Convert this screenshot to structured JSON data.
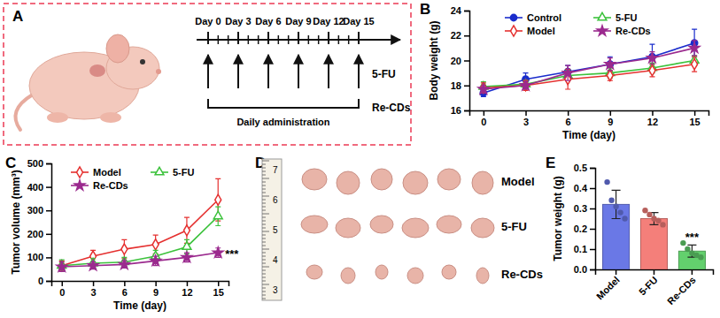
{
  "figure": {
    "panel_labels": [
      "A",
      "B",
      "C",
      "D",
      "E"
    ],
    "schematic": {
      "days": [
        0,
        3,
        6,
        9,
        12,
        15
      ],
      "day_labels": [
        "Day 0",
        "Day 3",
        "Day 6",
        "Day 9",
        "Day 12",
        "Day 15"
      ],
      "arrow_label": "5-FU",
      "bracket_label": "Re-CDs",
      "bracket_text": "Daily administration"
    },
    "photo": {
      "ruler": [
        7,
        6,
        5,
        4,
        3
      ],
      "rows": [
        "Model",
        "5-FU",
        "Re-CDs"
      ]
    }
  },
  "chart_data": [
    {
      "type": "line",
      "x_label": "Time (day)",
      "y_label": "Body weight (g)",
      "x": [
        0,
        3,
        6,
        9,
        12,
        15
      ],
      "xlim": [
        -1,
        16
      ],
      "xticks": [
        0,
        3,
        6,
        9,
        12,
        15
      ],
      "ylim": [
        16,
        24
      ],
      "yticks": [
        16,
        18,
        20,
        22,
        24
      ],
      "legend": "top",
      "series": [
        {
          "name": "Control",
          "color": "#1a2ccc",
          "marker": "circle",
          "values": [
            17.4,
            18.5,
            19.1,
            19.7,
            20.3,
            21.4
          ],
          "errors": [
            0.3,
            0.5,
            0.5,
            0.6,
            1.0,
            1.1
          ]
        },
        {
          "name": "5-FU",
          "color": "#3cc23c",
          "marker": "triangle-open",
          "values": [
            17.9,
            18.1,
            18.8,
            19.0,
            19.4,
            20.0
          ],
          "errors": [
            0.4,
            0.3,
            0.4,
            0.4,
            0.4,
            0.4
          ]
        },
        {
          "name": "Model",
          "color": "#e5302f",
          "marker": "diamond-open",
          "values": [
            17.8,
            18.0,
            18.5,
            18.8,
            19.2,
            19.7
          ],
          "errors": [
            0.4,
            0.4,
            0.8,
            0.4,
            0.5,
            0.6
          ]
        },
        {
          "name": "Re-CDs",
          "color": "#9b2a8e",
          "marker": "star",
          "values": [
            17.7,
            18.0,
            19.0,
            19.7,
            20.2,
            21.0
          ],
          "errors": [
            0.3,
            0.3,
            0.6,
            0.5,
            0.5,
            0.6
          ]
        }
      ]
    },
    {
      "type": "line",
      "x_label": "Time (day)",
      "y_label": "Tumor volume (mm³)",
      "x": [
        0,
        3,
        6,
        9,
        12,
        15
      ],
      "xlim": [
        -1,
        16
      ],
      "xticks": [
        0,
        3,
        6,
        9,
        12,
        15
      ],
      "ylim": [
        0,
        500
      ],
      "yticks": [
        0,
        100,
        200,
        300,
        400,
        500
      ],
      "legend": "top",
      "series": [
        {
          "name": "Model",
          "color": "#e5302f",
          "marker": "diamond-open",
          "values": [
            65,
            105,
            135,
            155,
            215,
            345
          ],
          "errors": [
            20,
            25,
            40,
            40,
            55,
            90
          ]
        },
        {
          "name": "5-FU",
          "color": "#3cc23c",
          "marker": "triangle-open",
          "values": [
            65,
            75,
            80,
            105,
            145,
            275
          ],
          "errors": [
            25,
            20,
            20,
            25,
            30,
            40
          ]
        },
        {
          "name": "Re-CDs",
          "color": "#9b2a8e",
          "marker": "star",
          "values": [
            60,
            65,
            70,
            85,
            100,
            120
          ],
          "errors": [
            20,
            15,
            15,
            20,
            20,
            20
          ]
        }
      ],
      "annotations": [
        {
          "text": "***",
          "x": 15,
          "y": 120
        }
      ]
    },
    {
      "type": "bar",
      "y_label": "Tumor weight (g)",
      "categories": [
        "Model",
        "5-FU",
        "Re-CDs"
      ],
      "values": [
        0.32,
        0.25,
        0.09
      ],
      "errors": [
        0.07,
        0.03,
        0.03
      ],
      "points": [
        [
          0.43,
          0.34,
          0.31,
          0.28,
          0.25
        ],
        [
          0.29,
          0.27,
          0.25,
          0.24,
          0.22
        ],
        [
          0.13,
          0.1,
          0.08,
          0.07,
          0.06
        ]
      ],
      "colors": [
        "#6a78e6",
        "#f47f7a",
        "#63d06d"
      ],
      "ylim": [
        0,
        0.5
      ],
      "yticks": [
        {
          "value": 0,
          "label": "0.0"
        },
        0.1,
        0.2,
        0.3,
        0.4,
        0.5
      ],
      "annotations": [
        {
          "text": "***",
          "x": 2,
          "y": 0.13
        }
      ]
    }
  ]
}
